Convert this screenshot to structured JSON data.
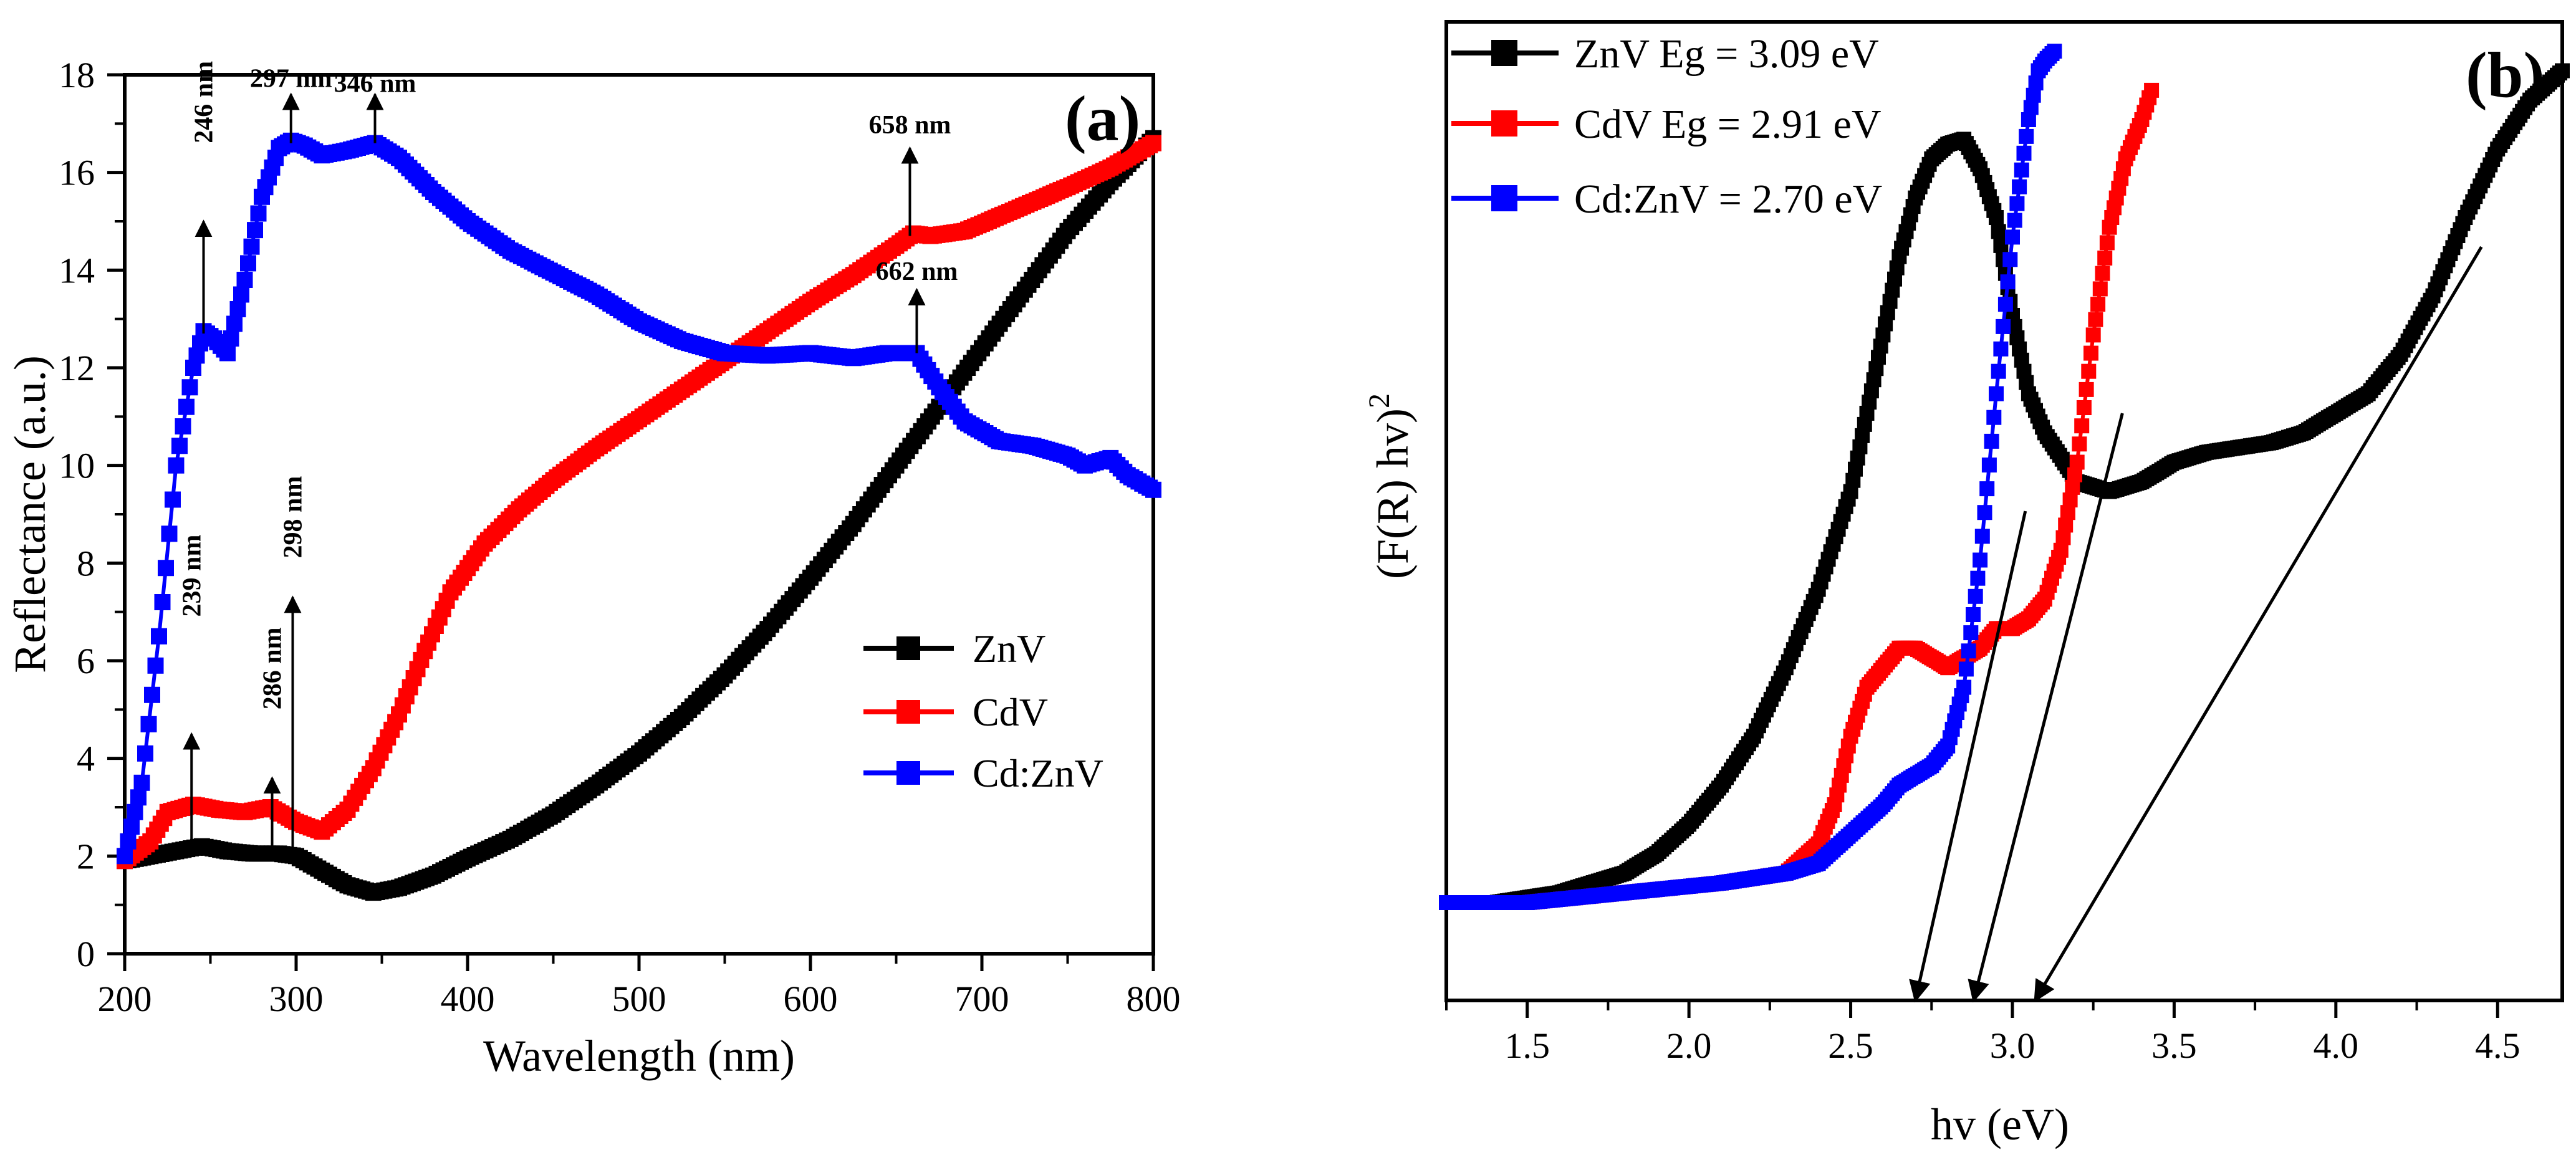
{
  "chart_data": [
    {
      "panel": "(a)",
      "type": "line",
      "xlabel": "Wavelength (nm)",
      "ylabel": "Reflectance (a.u.)",
      "xlim": [
        200,
        800
      ],
      "ylim": [
        0,
        18
      ],
      "xticks": [
        "200",
        "300",
        "400",
        "500",
        "600",
        "700",
        "800"
      ],
      "yticks": [
        "0",
        "2",
        "4",
        "6",
        "8",
        "10",
        "12",
        "14",
        "16",
        "18"
      ],
      "legend_position": "middle-right",
      "series": [
        {
          "name": "ZnV",
          "color": "#000000",
          "marker": "square",
          "x": [
            200,
            215,
            230,
            245,
            260,
            275,
            290,
            300,
            315,
            330,
            345,
            360,
            380,
            400,
            425,
            450,
            475,
            500,
            525,
            550,
            575,
            600,
            625,
            650,
            675,
            700,
            725,
            750,
            775,
            800
          ],
          "y": [
            1.9,
            2.0,
            2.1,
            2.2,
            2.1,
            2.05,
            2.05,
            2.0,
            1.7,
            1.4,
            1.25,
            1.35,
            1.6,
            1.95,
            2.35,
            2.85,
            3.45,
            4.1,
            4.85,
            5.7,
            6.65,
            7.7,
            8.8,
            10.0,
            11.2,
            12.4,
            13.6,
            14.8,
            15.8,
            16.7
          ]
        },
        {
          "name": "CdV",
          "color": "#ff0000",
          "marker": "square",
          "x": [
            200,
            215,
            225,
            240,
            255,
            270,
            285,
            300,
            315,
            330,
            345,
            360,
            375,
            390,
            410,
            430,
            450,
            475,
            500,
            525,
            550,
            575,
            600,
            625,
            650,
            660,
            670,
            690,
            710,
            730,
            750,
            775,
            800
          ],
          "y": [
            1.9,
            2.3,
            2.9,
            3.05,
            2.95,
            2.9,
            3.0,
            2.7,
            2.5,
            2.95,
            3.8,
            4.9,
            6.2,
            7.4,
            8.4,
            9.1,
            9.7,
            10.35,
            10.95,
            11.55,
            12.15,
            12.75,
            13.35,
            13.9,
            14.5,
            14.75,
            14.7,
            14.8,
            15.1,
            15.4,
            15.7,
            16.1,
            16.6
          ]
        },
        {
          "name": "Cd:ZnV",
          "color": "#0000ff",
          "marker": "square",
          "x": [
            200,
            210,
            220,
            230,
            240,
            246,
            252,
            260,
            270,
            280,
            290,
            297,
            305,
            315,
            330,
            346,
            360,
            380,
            400,
            425,
            450,
            475,
            500,
            525,
            550,
            575,
            600,
            625,
            645,
            662,
            675,
            690,
            710,
            730,
            750,
            760,
            775,
            785,
            800
          ],
          "y": [
            2.0,
            3.5,
            6.5,
            10.0,
            12.0,
            12.75,
            12.6,
            12.3,
            13.8,
            15.5,
            16.5,
            16.65,
            16.55,
            16.35,
            16.45,
            16.6,
            16.3,
            15.6,
            15.0,
            14.4,
            13.95,
            13.5,
            12.95,
            12.55,
            12.3,
            12.25,
            12.3,
            12.2,
            12.3,
            12.3,
            11.6,
            10.9,
            10.5,
            10.4,
            10.2,
            10.0,
            10.15,
            9.8,
            9.5
          ]
        }
      ],
      "annotations": [
        {
          "text": "239 nm",
          "x": 239,
          "y_from": 2.3,
          "y_to": 4.5,
          "label_y": 6.9
        },
        {
          "text": "286 nm",
          "x": 286,
          "y_from": 2.2,
          "y_to": 3.6,
          "label_y": 5.0
        },
        {
          "text": "298 nm",
          "x": 298,
          "y_from": 2.0,
          "y_to": 7.3,
          "label_y": 8.1
        },
        {
          "text": "246 nm",
          "x": 246,
          "y_from": 12.7,
          "y_to": 15.0,
          "label_y": 16.6
        },
        {
          "text": "297 nm",
          "x": 297,
          "y_from": 16.6,
          "y_to": 17.6,
          "label_y": 17.75
        },
        {
          "text": "346 nm",
          "x": 346,
          "y_from": 16.6,
          "y_to": 17.6,
          "label_y": 17.65
        },
        {
          "text": "658 nm",
          "x": 658,
          "y_from": 14.7,
          "y_to": 16.5,
          "label_y": 16.8
        },
        {
          "text": "662 nm",
          "x": 662,
          "y_from": 12.3,
          "y_to": 13.6,
          "label_y": 13.8
        }
      ]
    },
    {
      "panel": "(b)",
      "type": "line",
      "xlabel": "hv (eV)",
      "ylabel": "(F(R) hv)",
      "ylabel_superscript": "2",
      "xlim": [
        1.25,
        4.7
      ],
      "ylim": [
        0,
        1
      ],
      "xticks": [
        "1.5",
        "2.0",
        "2.5",
        "3.0",
        "3.5",
        "4.0",
        "4.5"
      ],
      "yticks": [],
      "legend_position": "top-left",
      "series": [
        {
          "name": "ZnV Eg = 3.09 eV",
          "color": "#000000",
          "marker": "square",
          "x": [
            1.25,
            1.4,
            1.6,
            1.8,
            1.9,
            2.0,
            2.1,
            2.2,
            2.3,
            2.4,
            2.5,
            2.55,
            2.6,
            2.65,
            2.7,
            2.75,
            2.8,
            2.85,
            2.9,
            2.95,
            3.0,
            3.05,
            3.1,
            3.2,
            3.3,
            3.4,
            3.5,
            3.6,
            3.8,
            3.9,
            4.0,
            4.1,
            4.2,
            4.3,
            4.4,
            4.5,
            4.6,
            4.7
          ],
          "y": [
            0.1,
            0.1,
            0.11,
            0.13,
            0.15,
            0.18,
            0.22,
            0.27,
            0.34,
            0.42,
            0.52,
            0.6,
            0.68,
            0.76,
            0.82,
            0.86,
            0.875,
            0.88,
            0.85,
            0.8,
            0.7,
            0.62,
            0.58,
            0.53,
            0.52,
            0.53,
            0.55,
            0.56,
            0.57,
            0.58,
            0.6,
            0.62,
            0.66,
            0.72,
            0.8,
            0.87,
            0.92,
            0.95
          ]
        },
        {
          "name": "CdV Eg = 2.91 eV",
          "color": "#ff0000",
          "marker": "square",
          "x": [
            1.25,
            1.5,
            1.8,
            2.1,
            2.3,
            2.4,
            2.45,
            2.5,
            2.55,
            2.6,
            2.65,
            2.7,
            2.75,
            2.8,
            2.85,
            2.9,
            2.95,
            3.0,
            3.05,
            3.1,
            3.15,
            3.2,
            3.25,
            3.3,
            3.35,
            3.4,
            3.43
          ],
          "y": [
            0.1,
            0.1,
            0.11,
            0.12,
            0.13,
            0.16,
            0.2,
            0.27,
            0.32,
            0.34,
            0.36,
            0.36,
            0.35,
            0.34,
            0.35,
            0.36,
            0.38,
            0.38,
            0.39,
            0.41,
            0.46,
            0.55,
            0.68,
            0.79,
            0.86,
            0.9,
            0.93
          ]
        },
        {
          "name": "Cd:ZnV = 2.70 eV",
          "color": "#0000ff",
          "marker": "square",
          "x": [
            1.25,
            1.5,
            1.8,
            2.1,
            2.3,
            2.4,
            2.5,
            2.6,
            2.65,
            2.7,
            2.75,
            2.8,
            2.85,
            2.9,
            2.95,
            3.0,
            3.05,
            3.08,
            3.1,
            3.13
          ],
          "y": [
            0.1,
            0.1,
            0.11,
            0.12,
            0.13,
            0.14,
            0.17,
            0.2,
            0.22,
            0.23,
            0.24,
            0.26,
            0.32,
            0.45,
            0.62,
            0.78,
            0.9,
            0.95,
            0.96,
            0.97
          ]
        }
      ],
      "tangent_lines": [
        {
          "label": "ZnV",
          "from": [
            4.45,
            0.77
          ],
          "to": [
            3.07,
            0.0
          ]
        },
        {
          "label": "CdV",
          "from": [
            3.34,
            0.6
          ],
          "to": [
            2.88,
            0.0
          ]
        },
        {
          "label": "Cd:ZnV",
          "from": [
            3.04,
            0.5
          ],
          "to": [
            2.7,
            0.0
          ]
        }
      ]
    }
  ]
}
